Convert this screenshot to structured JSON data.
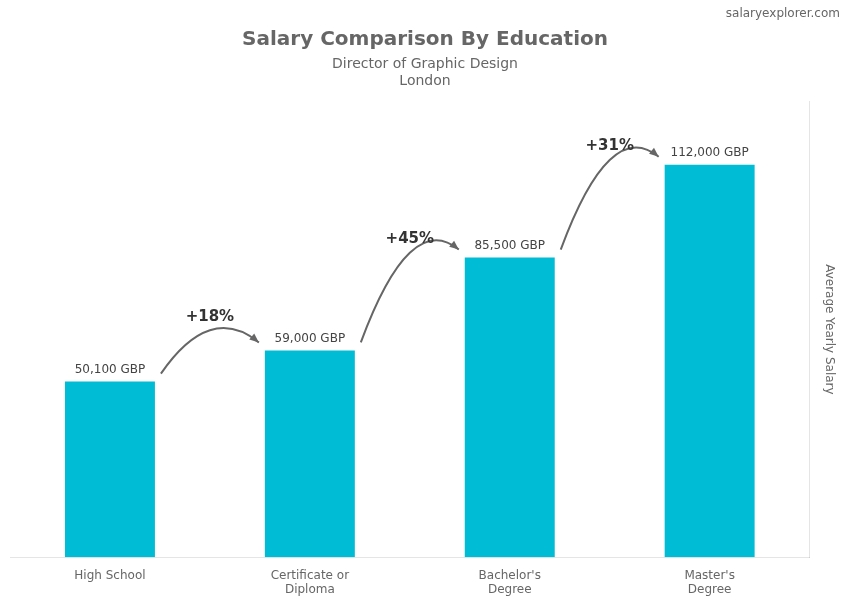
{
  "chart_data": {
    "type": "bar",
    "title": "Salary Comparison By Education",
    "subtitle": [
      "Director of Graphic Design",
      "London"
    ],
    "ylabel": "Average Yearly Salary",
    "categories": [
      "High School",
      "Certificate or\nDiploma",
      "Bachelor's\nDegree",
      "Master's\nDegree"
    ],
    "values": [
      50100,
      59000,
      85500,
      112000
    ],
    "value_labels": [
      "50,100 GBP",
      "59,000 GBP",
      "85,500 GBP",
      "112,000 GBP"
    ],
    "data_labels": true,
    "color": "#00bcd4",
    "ylim": [
      0,
      130000
    ],
    "tick_labels": "x",
    "grid": false,
    "annotations": [
      {
        "text": "salaryexplorer.com"
      },
      {
        "text": "+18%",
        "from": "High School",
        "to": "Certificate or\nDiploma"
      },
      {
        "text": "+45%",
        "from": "Certificate or\nDiploma",
        "to": "Bachelor's\nDegree"
      },
      {
        "text": "+31%",
        "from": "Bachelor's\nDegree",
        "to": "Master's\nDegree"
      }
    ]
  }
}
